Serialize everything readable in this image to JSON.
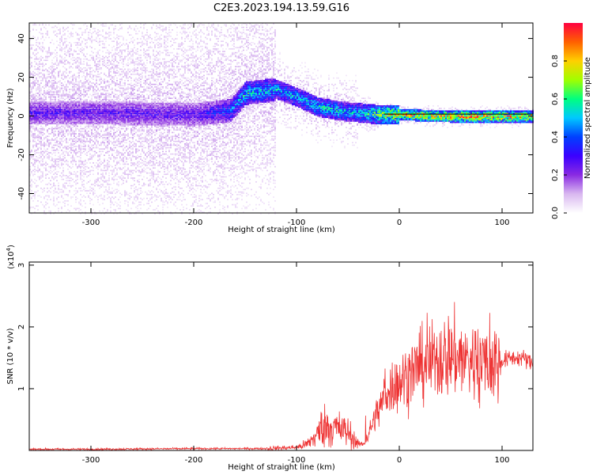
{
  "title": "C2E3.2023.194.13.59.G16",
  "colors": {
    "signal": "#ee3333",
    "axes": "#000000",
    "colormap": [
      "#ffffff",
      "#d9b8f0",
      "#8a2be2",
      "#3b00ff",
      "#0040ff",
      "#00c8ff",
      "#00ff80",
      "#a0ff00",
      "#ffd000",
      "#ff6000",
      "#ff0040"
    ]
  },
  "chart_data": [
    {
      "type": "heatmap",
      "title": "",
      "xlabel": "Height of straight line (km)",
      "ylabel": "Frequency (Hz)",
      "xlim": [
        -360,
        130
      ],
      "ylim": [
        -50,
        48
      ],
      "x_ticks": [
        -300,
        -200,
        -100,
        0,
        100
      ],
      "y_ticks": [
        -40,
        -20,
        0,
        20,
        40
      ],
      "colorbar": {
        "label": "Normalized spectral amplitude",
        "range": [
          0,
          1
        ],
        "ticks": [
          0.0,
          0.2,
          0.4,
          0.6,
          0.8
        ]
      },
      "ridge": {
        "description_points_x": [
          -360,
          -300,
          -200,
          -165,
          -150,
          -120,
          -100,
          -80,
          -60,
          -40,
          -20,
          0,
          50,
          100,
          130
        ],
        "center_freq_hz": [
          2,
          2,
          1,
          3,
          12,
          14,
          10,
          5,
          3,
          2,
          1,
          1,
          0,
          0,
          0
        ],
        "peak_amplitude": [
          0.3,
          0.3,
          0.3,
          0.45,
          0.6,
          0.55,
          0.55,
          0.6,
          0.6,
          0.55,
          0.75,
          0.9,
          0.95,
          0.95,
          0.9
        ]
      }
    },
    {
      "type": "line",
      "title": "",
      "xlabel": "Height of straight line (km)",
      "ylabel": "SNR (10 * v/v)",
      "y_multiplier": "(x10^4)",
      "y_multiplier_base": "(x10",
      "y_multiplier_exp": "4",
      "y_multiplier_close": ")",
      "xlim": [
        -360,
        130
      ],
      "ylim": [
        0,
        3.05
      ],
      "x_ticks": [
        -300,
        -200,
        -100,
        0,
        100
      ],
      "y_ticks": [
        1,
        2,
        3
      ],
      "series": [
        {
          "x": [
            -360,
            -300,
            -200,
            -130,
            -100,
            -90,
            -80,
            -75,
            -70,
            -60,
            -50,
            -40,
            -35,
            -30,
            -25,
            -20,
            -15,
            -10,
            -5,
            0,
            10,
            20,
            40,
            50,
            60,
            70,
            80,
            90,
            100,
            110,
            120,
            130
          ],
          "y": [
            0.02,
            0.02,
            0.03,
            0.03,
            0.05,
            0.1,
            0.25,
            0.4,
            0.4,
            0.35,
            0.3,
            0.1,
            0.1,
            0.25,
            0.5,
            0.65,
            0.85,
            1.0,
            1.05,
            1.1,
            1.25,
            1.35,
            1.5,
            1.55,
            1.5,
            1.45,
            1.45,
            1.4,
            1.45,
            1.5,
            1.5,
            1.4
          ]
        }
      ]
    }
  ]
}
